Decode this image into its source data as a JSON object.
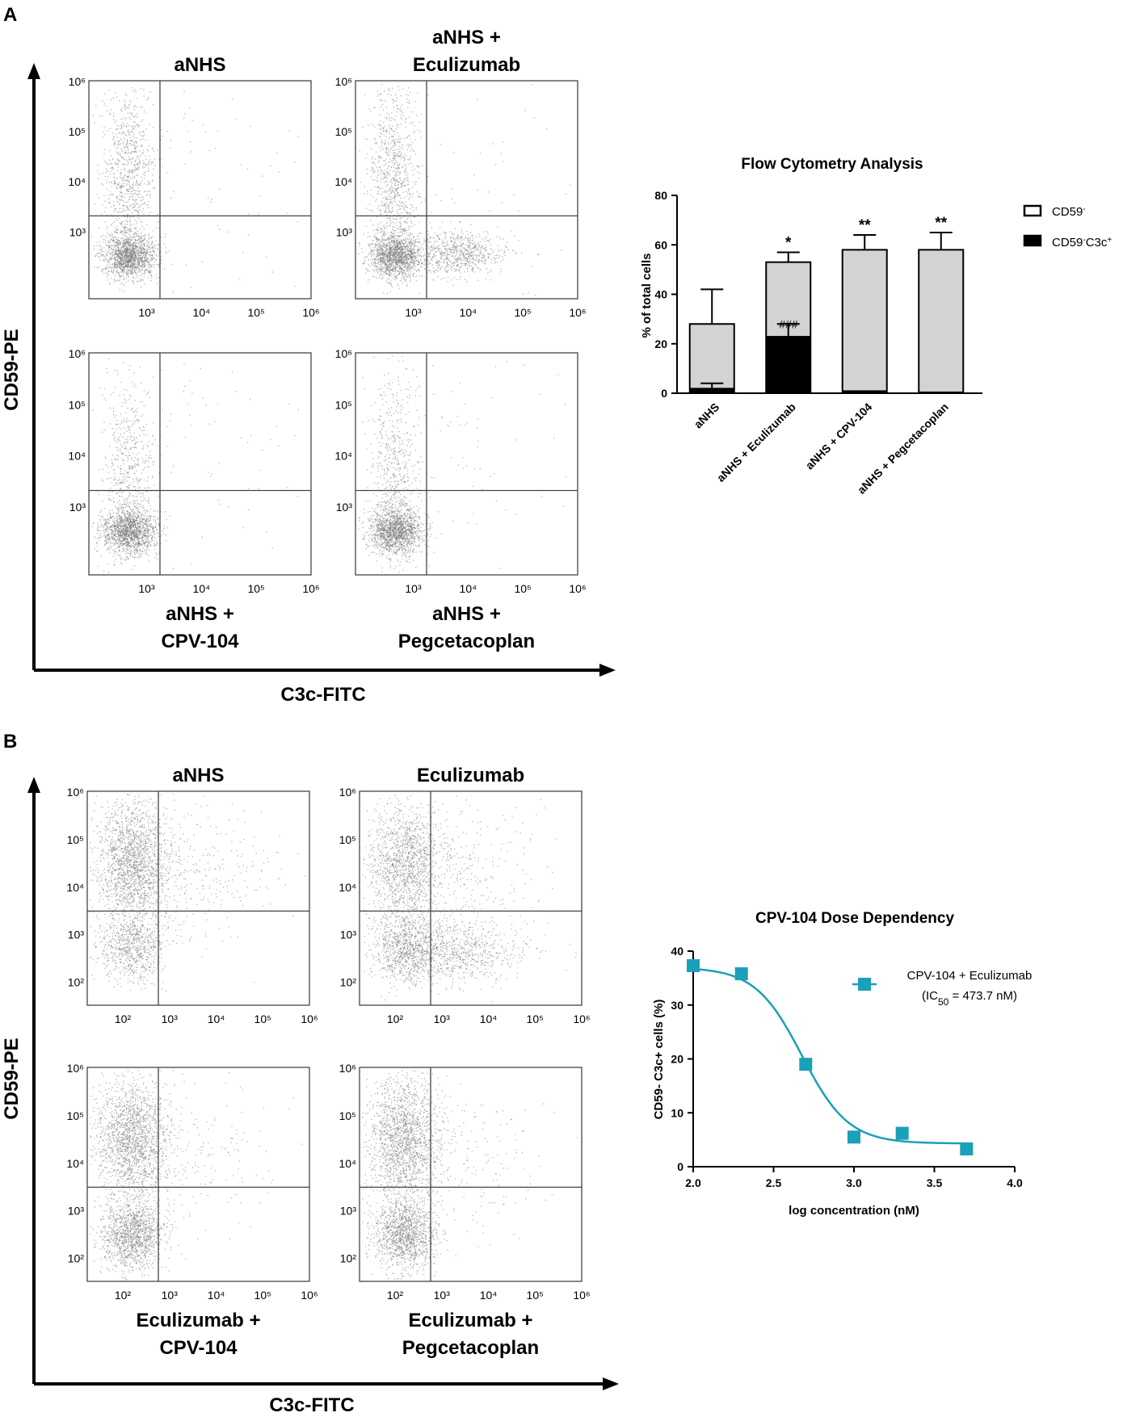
{
  "figure": {
    "panel_a_label": "A",
    "panel_b_label": "B"
  },
  "panel_a": {
    "y_axis_label": "CD59-PE",
    "x_axis_label": "C3c-FITC",
    "plots": [
      {
        "title_lines": [
          "aNHS"
        ],
        "title_pos": "top",
        "y_ticks": [
          "10⁶",
          "10⁵",
          "10⁴",
          "10³"
        ],
        "x_ticks": [
          "10³",
          "10⁴",
          "10⁵",
          "10⁶"
        ]
      },
      {
        "title_lines": [
          "aNHS +",
          "Eculizumab"
        ],
        "title_pos": "top",
        "y_ticks": [
          "10⁶",
          "10⁵",
          "10⁴",
          "10³"
        ],
        "x_ticks": [
          "10³",
          "10⁴",
          "10⁵",
          "10⁶"
        ]
      },
      {
        "title_lines": [
          "aNHS +",
          "CPV-104"
        ],
        "title_pos": "bottom",
        "y_ticks": [
          "10⁶",
          "10⁵",
          "10⁴",
          "10³"
        ],
        "x_ticks": [
          "10³",
          "10⁴",
          "10⁵",
          "10⁶"
        ]
      },
      {
        "title_lines": [
          "aNHS +",
          "Pegcetacoplan"
        ],
        "title_pos": "bottom",
        "y_ticks": [
          "10⁶",
          "10⁵",
          "10⁴",
          "10³"
        ],
        "x_ticks": [
          "10³",
          "10⁴",
          "10⁵",
          "10⁶"
        ]
      }
    ]
  },
  "panel_b": {
    "y_axis_label": "CD59-PE",
    "x_axis_label": "C3c-FITC",
    "plots": [
      {
        "title_lines": [
          "aNHS"
        ],
        "title_pos": "top",
        "y_ticks": [
          "10⁶",
          "10⁵",
          "10⁴",
          "10³",
          "10²"
        ],
        "x_ticks": [
          "10²",
          "10³",
          "10⁴",
          "10⁵",
          "10⁶"
        ]
      },
      {
        "title_lines": [
          "Eculizumab"
        ],
        "title_pos": "top",
        "y_ticks": [
          "10⁶",
          "10⁵",
          "10⁴",
          "10³",
          "10²"
        ],
        "x_ticks": [
          "10²",
          "10³",
          "10⁴",
          "10⁵",
          "10⁶"
        ]
      },
      {
        "title_lines": [
          "Eculizumab +",
          "CPV-104"
        ],
        "title_pos": "bottom",
        "y_ticks": [
          "10⁶",
          "10⁵",
          "10⁴",
          "10³",
          "10²"
        ],
        "x_ticks": [
          "10²",
          "10³",
          "10⁴",
          "10⁵",
          "10⁶"
        ]
      },
      {
        "title_lines": [
          "Eculizumab +",
          "Pegcetacoplan"
        ],
        "title_pos": "bottom",
        "y_ticks": [
          "10⁶",
          "10⁵",
          "10⁴",
          "10³",
          "10²"
        ],
        "x_ticks": [
          "10²",
          "10³",
          "10⁴",
          "10⁵",
          "10⁶"
        ]
      }
    ]
  },
  "chart_data": [
    {
      "type": "bar",
      "title": "Flow Cytometry Analysis",
      "ylabel": "% of total cells",
      "xlabel": "",
      "ylim": [
        0,
        80
      ],
      "yticks": [
        0,
        20,
        40,
        60,
        80
      ],
      "categories": [
        "aNHS",
        "aNHS + Eculizumab",
        "aNHS + CPV-104",
        "aNHS + Pegcetacoplan"
      ],
      "series": [
        {
          "name": "CD59⁻",
          "legend_sup": "-",
          "legend_base": "CD59",
          "color": "#d3d3d3",
          "values": [
            28,
            53,
            58,
            58
          ],
          "errors": [
            14,
            4,
            6,
            7
          ]
        },
        {
          "name": "CD59⁻C3c⁺",
          "legend_base": "CD59",
          "legend_sup": "-",
          "legend_base2": "C3c",
          "legend_sup2": "+",
          "color": "#000000",
          "values": [
            2,
            23,
            1,
            0.5
          ],
          "errors": [
            2,
            5,
            0,
            0
          ]
        }
      ],
      "annotations": [
        {
          "category": "aNHS + Eculizumab",
          "text": "*"
        },
        {
          "category": "aNHS + CPV-104",
          "text": "**"
        },
        {
          "category": "aNHS + Pegcetacoplan",
          "text": "**"
        },
        {
          "category": "aNHS + Eculizumab",
          "text": "###",
          "inside": true
        }
      ]
    },
    {
      "type": "scatter",
      "title": "CPV-104 Dose Dependency",
      "xlabel": "log concentration (nM)",
      "ylabel": "CD59- C3c+ cells (%)",
      "xlim": [
        2.0,
        4.0
      ],
      "ylim": [
        0,
        40
      ],
      "xticks": [
        "2.0",
        "2.5",
        "3.0",
        "3.5",
        "4.0"
      ],
      "yticks": [
        0,
        10,
        20,
        30,
        40
      ],
      "color": "#1aa0b8",
      "series": [
        {
          "name": "CPV-104 + Eculizumab",
          "x": [
            2.0,
            2.3,
            2.7,
            3.0,
            3.3,
            3.7
          ],
          "y": [
            37.3,
            35.8,
            19.0,
            5.5,
            6.2,
            3.3
          ]
        }
      ],
      "fit": {
        "top": 37,
        "bottom": 4.3,
        "log_ic50": 2.676,
        "hill": 3.0
      },
      "legend_line1": "CPV-104 + Eculizumab",
      "legend_line2_prefix": "(IC",
      "legend_line2_sub": "50",
      "legend_line2_suffix": " = 473.7 nM)"
    }
  ]
}
